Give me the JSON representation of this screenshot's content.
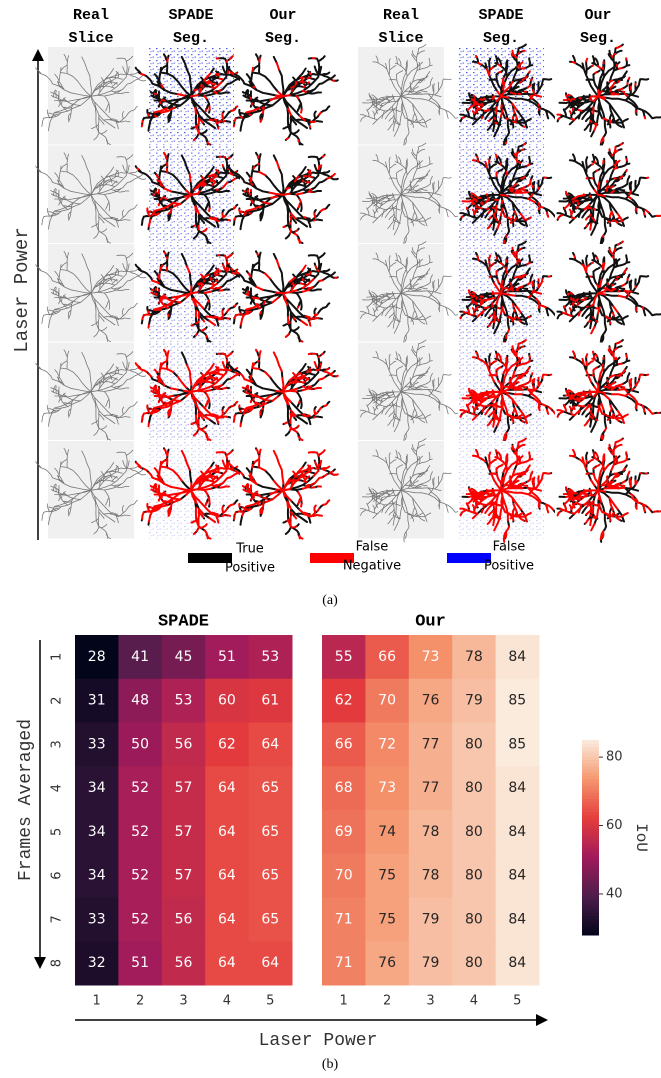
{
  "panel_a": {
    "column_headers": [
      [
        "Real",
        "Slice"
      ],
      [
        "SPADE",
        "Seg."
      ],
      [
        "Our",
        "Seg."
      ],
      [
        "Real",
        "Slice"
      ],
      [
        "SPADE",
        "Seg."
      ],
      [
        "Our",
        "Seg."
      ]
    ],
    "y_label": "Laser Power",
    "legend": [
      {
        "label": [
          "True",
          "Positive"
        ],
        "color": "#000000"
      },
      {
        "label": [
          "False",
          "Negative"
        ],
        "color": "#ff0000"
      },
      {
        "label": [
          "False",
          "Positive"
        ],
        "color": "#0000ff"
      }
    ],
    "caption": "(a)"
  },
  "chart_data": [
    {
      "type": "heatmap",
      "title": "SPADE",
      "x": [
        1,
        2,
        3,
        4,
        5
      ],
      "y": [
        1,
        2,
        3,
        4,
        5,
        6,
        7,
        8
      ],
      "values": [
        [
          28,
          41,
          45,
          51,
          53
        ],
        [
          31,
          48,
          53,
          60,
          61
        ],
        [
          33,
          50,
          56,
          62,
          64
        ],
        [
          34,
          52,
          57,
          64,
          65
        ],
        [
          34,
          52,
          57,
          64,
          65
        ],
        [
          34,
          52,
          57,
          64,
          65
        ],
        [
          33,
          52,
          56,
          64,
          65
        ],
        [
          32,
          51,
          56,
          64,
          64
        ]
      ]
    },
    {
      "type": "heatmap",
      "title": "Our",
      "x": [
        1,
        2,
        3,
        4,
        5
      ],
      "values": [
        [
          55,
          66,
          73,
          78,
          84
        ],
        [
          62,
          70,
          76,
          79,
          85
        ],
        [
          66,
          72,
          77,
          80,
          85
        ],
        [
          68,
          73,
          77,
          80,
          84
        ],
        [
          69,
          74,
          78,
          80,
          84
        ],
        [
          70,
          75,
          78,
          80,
          84
        ],
        [
          71,
          75,
          79,
          80,
          84
        ],
        [
          71,
          76,
          79,
          80,
          84
        ]
      ]
    }
  ],
  "panel_b": {
    "y_label": "Frames Averaged",
    "x_label": "Laser Power",
    "colorbar": {
      "label": "IoU",
      "lim": [
        28,
        85
      ],
      "ticks": [
        40,
        60,
        80
      ]
    },
    "caption": "(b)"
  }
}
